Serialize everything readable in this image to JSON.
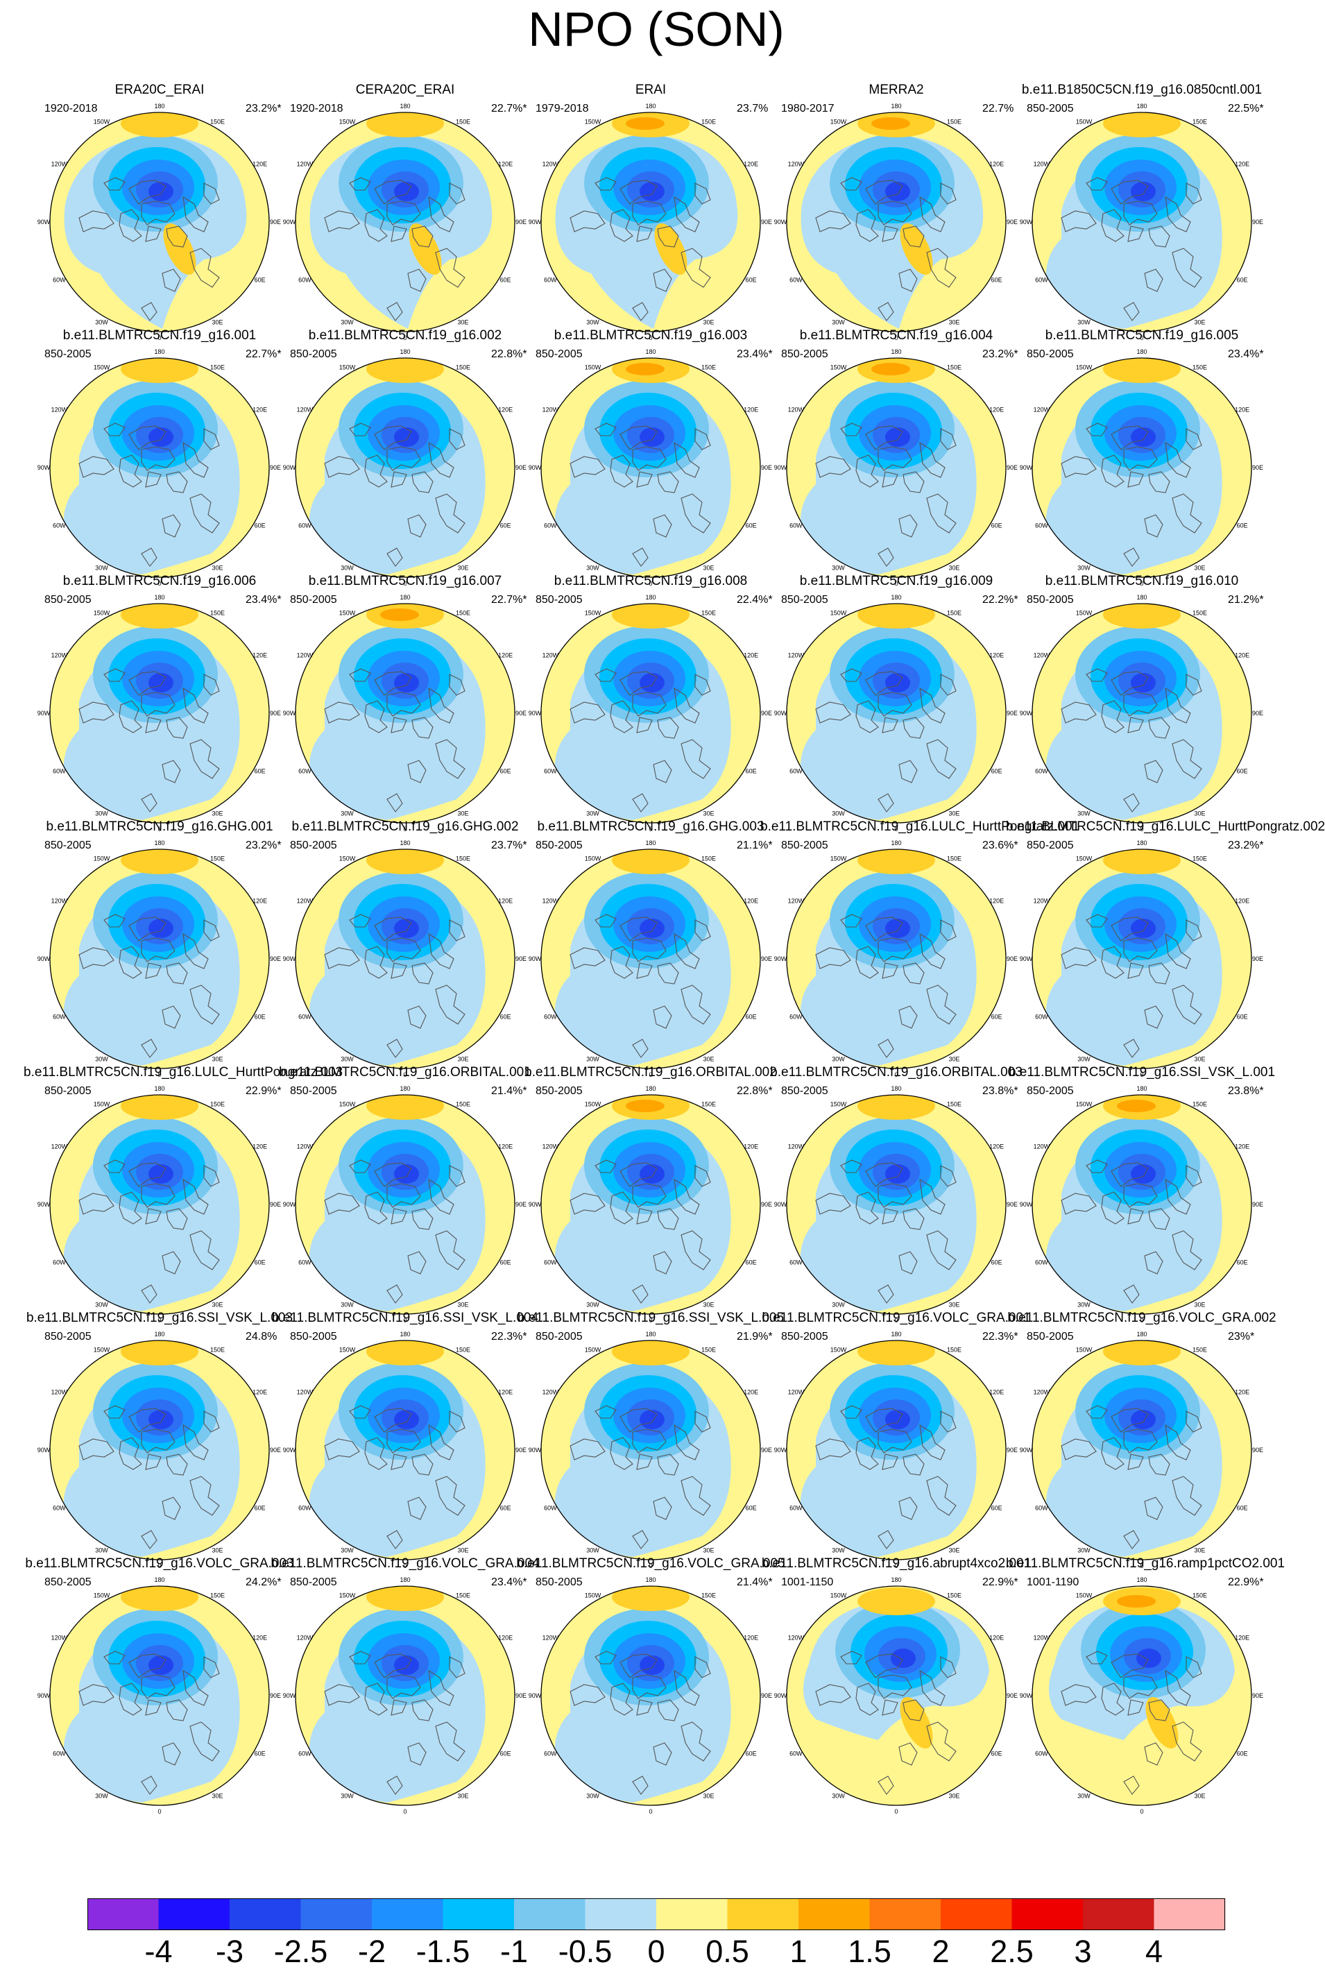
{
  "figure_title": "NPO (SON)",
  "longitude_labels": [
    "180",
    "150E",
    "120E",
    "90E",
    "60E",
    "30E",
    "0",
    "30W",
    "60W",
    "90W",
    "120W",
    "150W"
  ],
  "colorbar": {
    "colors": [
      "#8a2be2",
      "#1e10ff",
      "#2244ee",
      "#2e6ef2",
      "#1e90ff",
      "#00bfff",
      "#78c8f0",
      "#b4def6",
      "#fff68f",
      "#ffd02a",
      "#ffa500",
      "#ff7a10",
      "#ff4500",
      "#ee0000",
      "#cd1a1a",
      "#ffb2b2"
    ],
    "labels": [
      "-4",
      "-3",
      "-2.5",
      "-2",
      "-1.5",
      "-1",
      "-0.5",
      "0",
      "0.5",
      "1",
      "1.5",
      "2",
      "2.5",
      "3",
      "4"
    ]
  },
  "chart_data": {
    "type": "heatmap",
    "title": "NPO (SON)",
    "projection": "north polar stereographic",
    "levels": [
      -4,
      -3,
      -2.5,
      -2,
      -1.5,
      -1,
      -0.5,
      0,
      0.5,
      1,
      1.5,
      2,
      2.5,
      3,
      4
    ],
    "panels": [
      {
        "title": "ERA20C_ERAI",
        "period": "1920-2018",
        "pct": "23.2%*",
        "style": "reanalysis",
        "low_min": -2.5,
        "high_max": 0.5
      },
      {
        "title": "CERA20C_ERAI",
        "period": "1920-2018",
        "pct": "22.7%*",
        "style": "reanalysis",
        "low_min": -2.5,
        "high_max": 0.5
      },
      {
        "title": "ERAI",
        "period": "1979-2018",
        "pct": "23.7%",
        "style": "reanalysis",
        "low_min": -2.5,
        "high_max": 1.0
      },
      {
        "title": "MERRA2",
        "period": "1980-2017",
        "pct": "22.7%",
        "style": "reanalysis",
        "low_min": -2.5,
        "high_max": 1.0
      },
      {
        "title": "b.e11.B1850C5CN.f19_g16.0850cntl.001",
        "period": "850-2005",
        "pct": "22.5%*",
        "style": "model",
        "low_min": -2.5,
        "high_max": 0.5
      },
      {
        "title": "b.e11.BLMTRC5CN.f19_g16.001",
        "period": "850-2005",
        "pct": "22.7%*",
        "style": "model",
        "low_min": -3.0,
        "high_max": 0.5
      },
      {
        "title": "b.e11.BLMTRC5CN.f19_g16.002",
        "period": "850-2005",
        "pct": "22.8%*",
        "style": "model",
        "low_min": -2.5,
        "high_max": 0.5
      },
      {
        "title": "b.e11.BLMTRC5CN.f19_g16.003",
        "period": "850-2005",
        "pct": "23.4%*",
        "style": "model",
        "low_min": -2.5,
        "high_max": 1.0
      },
      {
        "title": "b.e11.BLMTRC5CN.f19_g16.004",
        "period": "850-2005",
        "pct": "23.2%*",
        "style": "model",
        "low_min": -2.5,
        "high_max": 1.0
      },
      {
        "title": "b.e11.BLMTRC5CN.f19_g16.005",
        "period": "850-2005",
        "pct": "23.4%*",
        "style": "model",
        "low_min": -2.5,
        "high_max": 0.5
      },
      {
        "title": "b.e11.BLMTRC5CN.f19_g16.006",
        "period": "850-2005",
        "pct": "23.4%*",
        "style": "model",
        "low_min": -3.0,
        "high_max": 0.5
      },
      {
        "title": "b.e11.BLMTRC5CN.f19_g16.007",
        "period": "850-2005",
        "pct": "22.7%*",
        "style": "model",
        "low_min": -2.5,
        "high_max": 1.0
      },
      {
        "title": "b.e11.BLMTRC5CN.f19_g16.008",
        "period": "850-2005",
        "pct": "22.4%*",
        "style": "model",
        "low_min": -2.5,
        "high_max": 0.5
      },
      {
        "title": "b.e11.BLMTRC5CN.f19_g16.009",
        "period": "850-2005",
        "pct": "22.2%*",
        "style": "model",
        "low_min": -2.5,
        "high_max": 0.5
      },
      {
        "title": "b.e11.BLMTRC5CN.f19_g16.010",
        "period": "850-2005",
        "pct": "21.2%*",
        "style": "model",
        "low_min": -2.5,
        "high_max": 0.5
      },
      {
        "title": "b.e11.BLMTRC5CN.f19_g16.GHG.001",
        "period": "850-2005",
        "pct": "23.2%*",
        "style": "model",
        "low_min": -2.5,
        "high_max": 0.5
      },
      {
        "title": "b.e11.BLMTRC5CN.f19_g16.GHG.002",
        "period": "850-2005",
        "pct": "23.7%*",
        "style": "model",
        "low_min": -3.0,
        "high_max": 0.5
      },
      {
        "title": "b.e11.BLMTRC5CN.f19_g16.GHG.003",
        "period": "850-2005",
        "pct": "21.1%*",
        "style": "model",
        "low_min": -2.5,
        "high_max": 0.5
      },
      {
        "title": "b.e11.BLMTRC5CN.f19_g16.LULC_HurttPongratz.001",
        "period": "850-2005",
        "pct": "23.6%*",
        "style": "model",
        "low_min": -2.5,
        "high_max": 0.5
      },
      {
        "title": "b.e11.BLMTRC5CN.f19_g16.LULC_HurttPongratz.002",
        "period": "850-2005",
        "pct": "23.2%*",
        "style": "model",
        "low_min": -2.5,
        "high_max": 0.5
      },
      {
        "title": "b.e11.BLMTRC5CN.f19_g16.LULC_HurttPongratz.003",
        "period": "850-2005",
        "pct": "22.9%*",
        "style": "model",
        "low_min": -2.5,
        "high_max": 0.5
      },
      {
        "title": "b.e11.BLMTRC5CN.f19_g16.ORBITAL.001",
        "period": "850-2005",
        "pct": "21.4%*",
        "style": "model",
        "low_min": -2.5,
        "high_max": 0.5
      },
      {
        "title": "b.e11.BLMTRC5CN.f19_g16.ORBITAL.002",
        "period": "850-2005",
        "pct": "22.8%*",
        "style": "model",
        "low_min": -2.5,
        "high_max": 1.0
      },
      {
        "title": "b.e11.BLMTRC5CN.f19_g16.ORBITAL.003",
        "period": "850-2005",
        "pct": "23.8%*",
        "style": "model",
        "low_min": -3.0,
        "high_max": 0.5
      },
      {
        "title": "b.e11.BLMTRC5CN.f19_g16.SSI_VSK_L.001",
        "period": "850-2005",
        "pct": "23.8%*",
        "style": "model",
        "low_min": -2.5,
        "high_max": 1.0
      },
      {
        "title": "b.e11.BLMTRC5CN.f19_g16.SSI_VSK_L.003",
        "period": "850-2005",
        "pct": "24.8%",
        "style": "model",
        "low_min": -2.5,
        "high_max": 0.5
      },
      {
        "title": "b.e11.BLMTRC5CN.f19_g16.SSI_VSK_L.004",
        "period": "850-2005",
        "pct": "22.3%*",
        "style": "model",
        "low_min": -2.5,
        "high_max": 0.5
      },
      {
        "title": "b.e11.BLMTRC5CN.f19_g16.SSI_VSK_L.005",
        "period": "850-2005",
        "pct": "21.9%*",
        "style": "model",
        "low_min": -2.5,
        "high_max": 0.5
      },
      {
        "title": "b.e11.BLMTRC5CN.f19_g16.VOLC_GRA.001",
        "period": "850-2005",
        "pct": "22.3%*",
        "style": "model",
        "low_min": -2.5,
        "high_max": 0.5
      },
      {
        "title": "b.e11.BLMTRC5CN.f19_g16.VOLC_GRA.002",
        "period": "850-2005",
        "pct": "23%*",
        "style": "model",
        "low_min": -2.5,
        "high_max": 0.5
      },
      {
        "title": "b.e11.BLMTRC5CN.f19_g16.VOLC_GRA.003",
        "period": "850-2005",
        "pct": "24.2%*",
        "style": "model",
        "low_min": -2.5,
        "high_max": 0.5
      },
      {
        "title": "b.e11.BLMTRC5CN.f19_g16.VOLC_GRA.004",
        "period": "850-2005",
        "pct": "23.4%*",
        "style": "model",
        "low_min": -3.0,
        "high_max": 0.5
      },
      {
        "title": "b.e11.BLMTRC5CN.f19_g16.VOLC_GRA.005",
        "period": "850-2005",
        "pct": "21.4%*",
        "style": "model",
        "low_min": -2.5,
        "high_max": 0.5
      },
      {
        "title": "b.e11.BLMTRC5CN.f19_g16.abrupt4xco2.001",
        "period": "1001-1150",
        "pct": "22.9%*",
        "style": "co2",
        "low_min": -2.5,
        "high_max": 0.5
      },
      {
        "title": "b.e11.BLMTRC5CN.f19_g16.ramp1pctCO2.001",
        "period": "1001-1190",
        "pct": "22.9%*",
        "style": "co2",
        "low_min": -3.0,
        "high_max": 1.0
      }
    ]
  }
}
